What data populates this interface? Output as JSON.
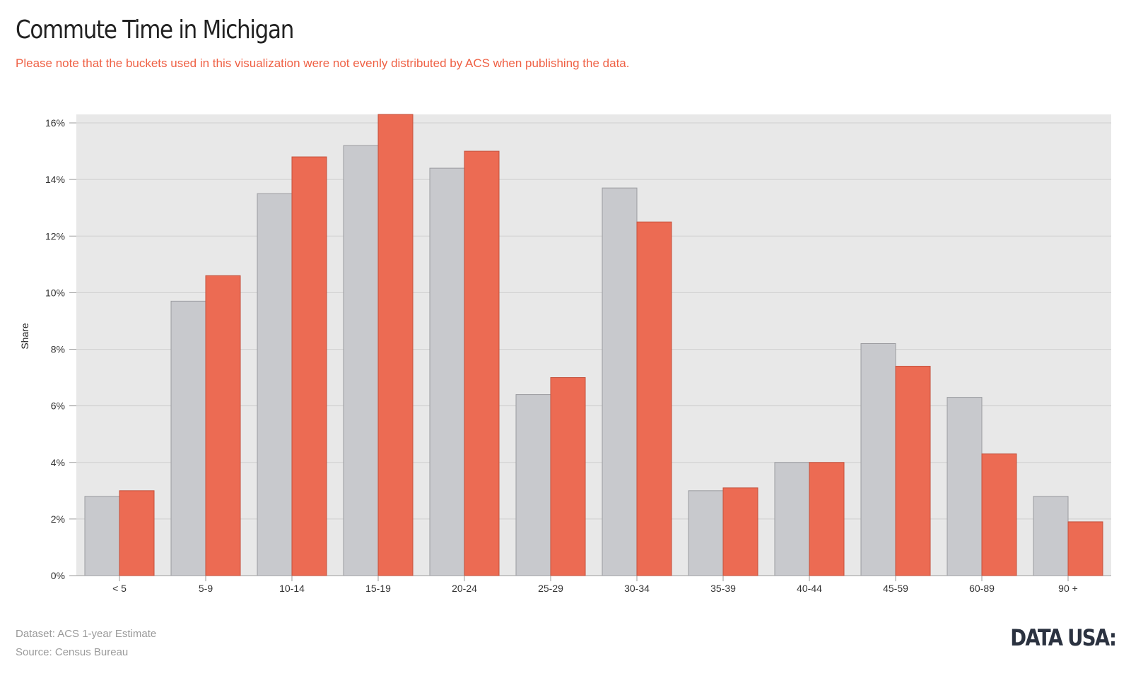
{
  "title": "Commute Time in Michigan",
  "subtitle": "Please note that the buckets used in this visualization were not evenly distributed by ACS when publishing the data.",
  "footer": {
    "dataset": "Dataset: ACS 1-year Estimate",
    "source": "Source: Census Bureau"
  },
  "logo": "DATA USA:",
  "colors": {
    "series_gray": "#c8c9cd",
    "series_red": "#ec6b53",
    "plot_bg": "#e8e8e8",
    "title": "#222222",
    "subtitle": "#ef6145"
  },
  "chart_data": {
    "type": "bar",
    "ylabel": "Share",
    "xlabel": "",
    "ylim": [
      0,
      16.3
    ],
    "grid": true,
    "yticks": [
      "0%",
      "2%",
      "4%",
      "6%",
      "8%",
      "10%",
      "12%",
      "14%",
      "16%"
    ],
    "categories": [
      "< 5",
      "5-9",
      "10-14",
      "15-19",
      "20-24",
      "25-29",
      "30-34",
      "35-39",
      "40-44",
      "45-59",
      "60-89",
      "90 +"
    ],
    "series": [
      {
        "values": [
          2.8,
          9.7,
          13.5,
          15.2,
          14.4,
          6.4,
          13.7,
          3.0,
          4.0,
          8.2,
          6.3,
          2.8
        ]
      },
      {
        "values": [
          3.0,
          10.6,
          14.8,
          16.3,
          15.0,
          7.0,
          12.5,
          3.1,
          4.0,
          7.4,
          4.3,
          1.9
        ]
      }
    ]
  }
}
